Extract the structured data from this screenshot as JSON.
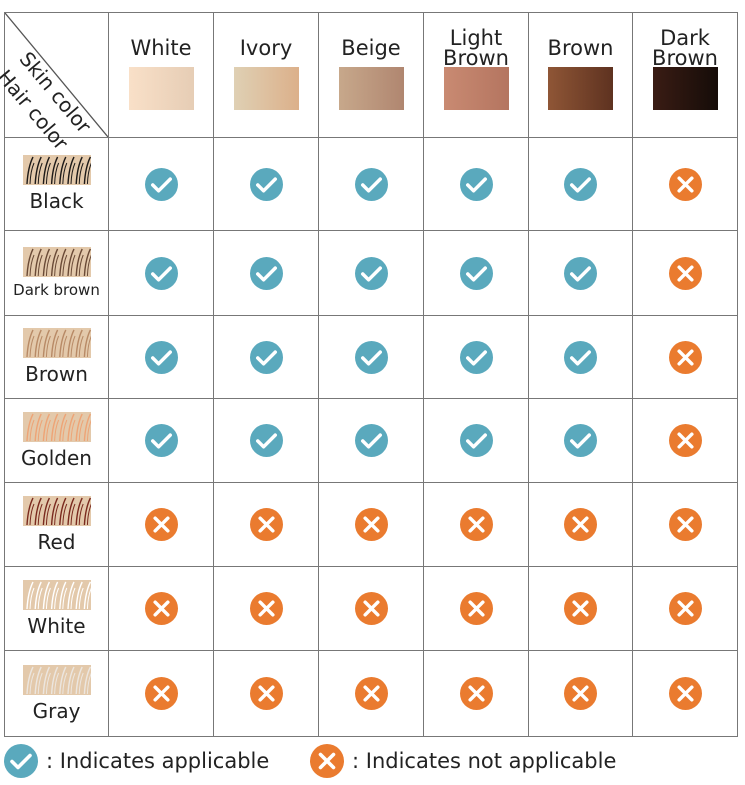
{
  "corner": {
    "skin_label": "Skin color",
    "hair_label": "Hair color"
  },
  "skin_colors": [
    {
      "label": "White",
      "from": "#f9e0c8",
      "to": "#e6cdb5"
    },
    {
      "label": "Ivory",
      "from": "#dfd0b4",
      "to": "#dcb08a"
    },
    {
      "label": "Beige",
      "from": "#c7a88b",
      "to": "#b08670"
    },
    {
      "label": "Light\nBrown",
      "from": "#c98a72",
      "to": "#b47560"
    },
    {
      "label": "Brown",
      "from": "#8f5636",
      "to": "#5e3220"
    },
    {
      "label": "Dark\nBrown",
      "from": "#3a1c14",
      "to": "#150c08"
    }
  ],
  "hair_rows": [
    {
      "label": "Black",
      "strand": "#1e1a18",
      "applicable": [
        true,
        true,
        true,
        true,
        true,
        false
      ]
    },
    {
      "label": "Dark brown",
      "strand": "#6a4a36",
      "applicable": [
        true,
        true,
        true,
        true,
        true,
        false
      ]
    },
    {
      "label": "Brown",
      "strand": "#b88a66",
      "applicable": [
        true,
        true,
        true,
        true,
        true,
        false
      ]
    },
    {
      "label": "Golden",
      "strand": "#eea476",
      "applicable": [
        true,
        true,
        true,
        true,
        true,
        false
      ]
    },
    {
      "label": "Red",
      "strand": "#7a2a1e",
      "applicable": [
        false,
        false,
        false,
        false,
        false,
        false
      ]
    },
    {
      "label": "White",
      "strand": "#ffffff",
      "applicable": [
        false,
        false,
        false,
        false,
        false,
        false
      ]
    },
    {
      "label": "Gray",
      "strand": "#ece6df",
      "applicable": [
        false,
        false,
        false,
        false,
        false,
        false
      ]
    }
  ],
  "hair_swatch_bg": "#e3c9ab",
  "colors": {
    "check": "#5aa9bd",
    "cross": "#ea7b2f"
  },
  "legend": {
    "applicable": ": Indicates applicable",
    "not_applicable": ": Indicates not applicable"
  }
}
